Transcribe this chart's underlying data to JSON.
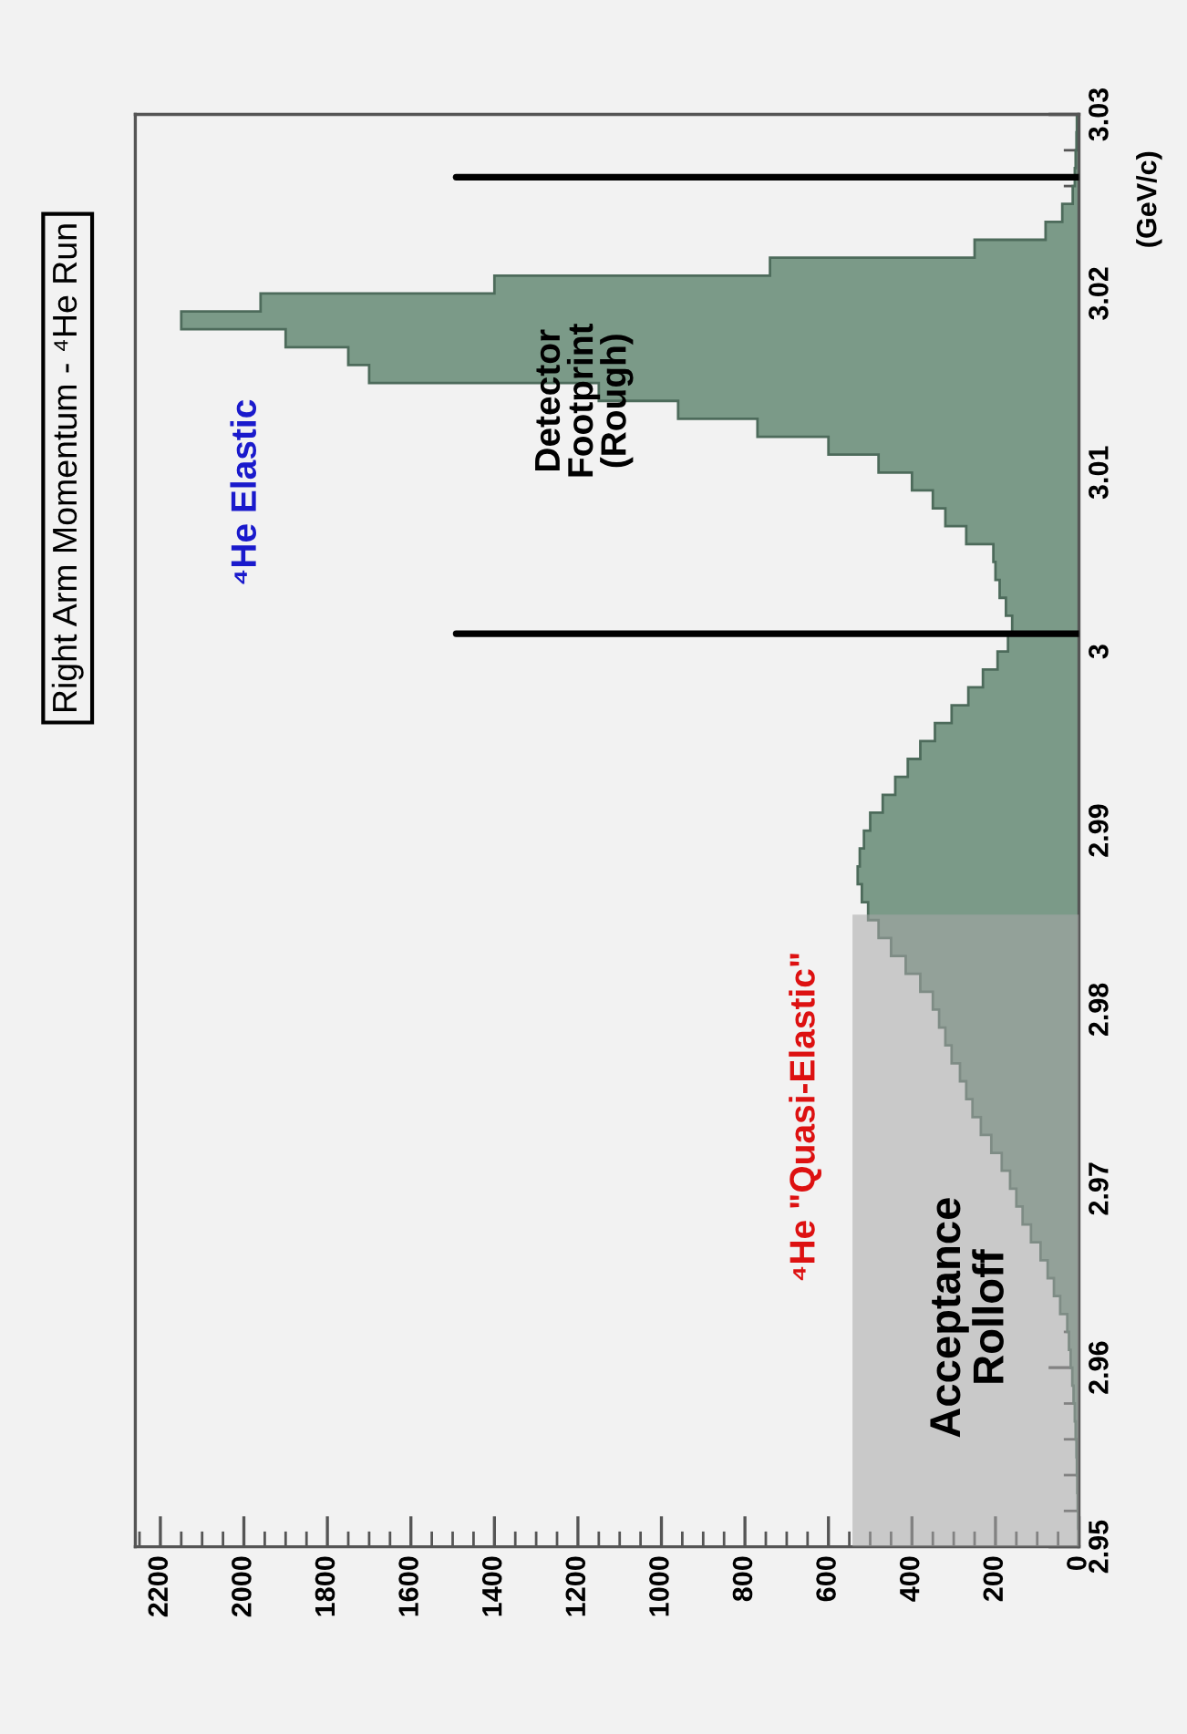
{
  "chart_data": {
    "type": "histogram",
    "title": "Right Arm Momentum - ⁴He Run",
    "ylabel": "(GeV/c)",
    "orientation": "horizontal",
    "color": "#7b9a88",
    "bins": [
      2.95,
      2.951,
      2.952,
      2.953,
      2.954,
      2.955,
      2.956,
      2.957,
      2.958,
      2.959,
      2.96,
      2.961,
      2.962,
      2.963,
      2.964,
      2.965,
      2.966,
      2.967,
      2.968,
      2.969,
      2.97,
      2.971,
      2.972,
      2.973,
      2.974,
      2.975,
      2.976,
      2.977,
      2.978,
      2.979,
      2.98,
      2.981,
      2.982,
      2.983,
      2.984,
      2.985,
      2.986,
      2.987,
      2.988,
      2.989,
      2.99,
      2.991,
      2.992,
      2.993,
      2.994,
      2.995,
      2.996,
      2.997,
      2.998,
      2.999,
      3.0,
      3.001,
      3.002,
      3.003,
      3.004,
      3.005,
      3.006,
      3.007,
      3.008,
      3.009,
      3.01,
      3.011,
      3.012,
      3.013,
      3.014,
      3.015,
      3.016,
      3.017,
      3.018,
      3.019,
      3.02,
      3.021,
      3.022,
      3.023,
      3.024,
      3.025,
      3.026,
      3.027,
      3.028,
      3.029,
      3.03
    ],
    "values": [
      1,
      2,
      3,
      4,
      5,
      6,
      8,
      10,
      13,
      16,
      20,
      24,
      28,
      45,
      60,
      75,
      92,
      115,
      135,
      150,
      165,
      185,
      210,
      235,
      255,
      270,
      285,
      305,
      320,
      335,
      350,
      380,
      415,
      450,
      480,
      505,
      520,
      530,
      525,
      515,
      500,
      470,
      440,
      410,
      380,
      345,
      305,
      265,
      230,
      195,
      170,
      160,
      175,
      190,
      200,
      205,
      270,
      320,
      350,
      400,
      480,
      600,
      770,
      960,
      1150,
      1700,
      1750,
      1900,
      2150,
      1960,
      1400,
      740,
      250,
      80,
      40,
      15,
      10,
      8,
      6,
      5
    ],
    "xlim": [
      2260,
      0
    ],
    "xticks": [
      0,
      200,
      400,
      600,
      800,
      1000,
      1200,
      1400,
      1600,
      1800,
      2000,
      2200
    ],
    "ylim": [
      2.95,
      3.03
    ],
    "yticks": [
      2.95,
      2.96,
      2.97,
      2.98,
      2.99,
      3,
      3.01,
      3.02,
      3.03
    ],
    "ref_lines": [
      {
        "axis": "y",
        "value": 3.001,
        "color": "#000000"
      },
      {
        "axis": "y",
        "value": 3.0265,
        "color": "#000000"
      }
    ],
    "bands": [
      {
        "axis": "y",
        "from": 2.95,
        "to": 2.9853,
        "label": "Acceptance\nRolloff",
        "color": "#a8a8a8"
      }
    ],
    "annotations": [
      "⁴He Elastic",
      "⁴He \"Quasi-Elastic\"",
      "Detector\nFootprint\n(Rough)"
    ],
    "grid": false,
    "legend": false
  }
}
